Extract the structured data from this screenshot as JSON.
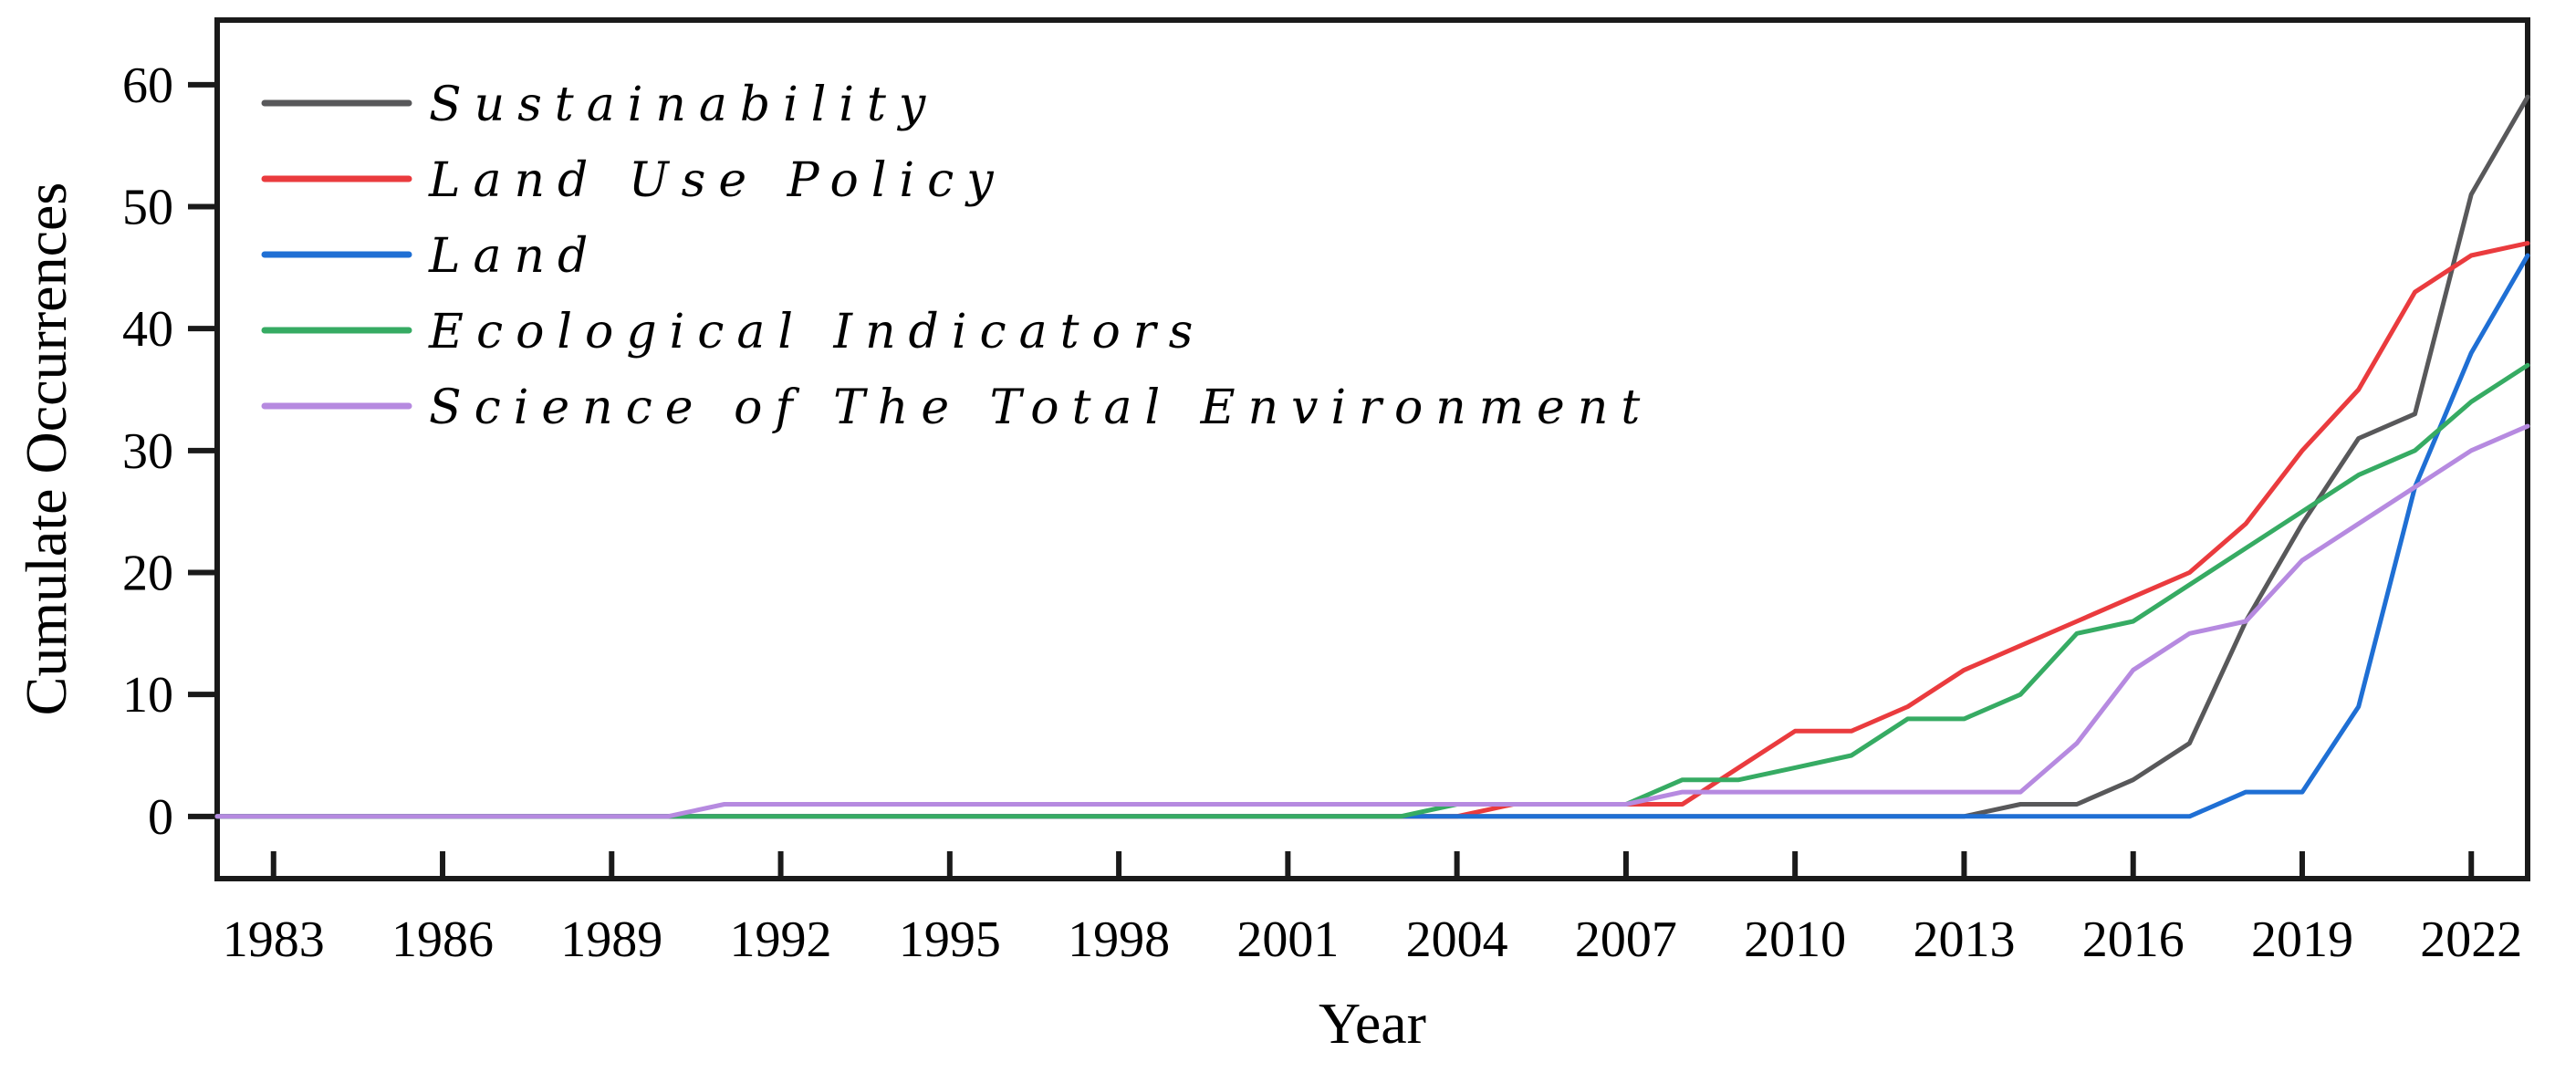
{
  "chart_data": {
    "type": "line",
    "title": "",
    "xlabel": "Year",
    "ylabel": "Cumulate Occurrences",
    "grid": false,
    "legend_position": "upper left",
    "xlim": [
      1982,
      2023
    ],
    "ylim": [
      -5.1,
      65.3
    ],
    "x_ticks": [
      1983,
      1986,
      1989,
      1992,
      1995,
      1998,
      2001,
      2004,
      2007,
      2010,
      2013,
      2016,
      2019,
      2022
    ],
    "y_ticks": [
      0,
      10,
      20,
      30,
      40,
      50,
      60
    ],
    "x": [
      1982,
      1983,
      1984,
      1985,
      1986,
      1987,
      1988,
      1989,
      1990,
      1991,
      1992,
      1993,
      1994,
      1995,
      1996,
      1997,
      1998,
      1999,
      2000,
      2001,
      2002,
      2003,
      2004,
      2005,
      2006,
      2007,
      2008,
      2009,
      2010,
      2011,
      2012,
      2013,
      2014,
      2015,
      2016,
      2017,
      2018,
      2019,
      2020,
      2021,
      2022,
      2023
    ],
    "series": [
      {
        "name": "Sustainability",
        "color": "#58585a",
        "values": [
          0,
          0,
          0,
          0,
          0,
          0,
          0,
          0,
          0,
          0,
          0,
          0,
          0,
          0,
          0,
          0,
          0,
          0,
          0,
          0,
          0,
          0,
          0,
          0,
          0,
          0,
          0,
          0,
          0,
          0,
          0,
          0,
          1,
          1,
          3,
          6,
          16,
          24,
          31,
          33,
          51,
          59
        ]
      },
      {
        "name": "Land Use Policy",
        "color": "#ea3b3e",
        "values": [
          0,
          0,
          0,
          0,
          0,
          0,
          0,
          0,
          0,
          0,
          0,
          0,
          0,
          0,
          0,
          0,
          0,
          0,
          0,
          0,
          0,
          0,
          0,
          1,
          1,
          1,
          1,
          4,
          7,
          7,
          9,
          12,
          14,
          16,
          18,
          20,
          24,
          30,
          35,
          43,
          46,
          47
        ]
      },
      {
        "name": "Land",
        "color": "#1f6fd4",
        "values": [
          0,
          0,
          0,
          0,
          0,
          0,
          0,
          0,
          0,
          0,
          0,
          0,
          0,
          0,
          0,
          0,
          0,
          0,
          0,
          0,
          0,
          0,
          0,
          0,
          0,
          0,
          0,
          0,
          0,
          0,
          0,
          0,
          0,
          0,
          0,
          0,
          2,
          2,
          9,
          27,
          38,
          46
        ]
      },
      {
        "name": "Ecological Indicators",
        "color": "#36ab63",
        "values": [
          0,
          0,
          0,
          0,
          0,
          0,
          0,
          0,
          0,
          0,
          0,
          0,
          0,
          0,
          0,
          0,
          0,
          0,
          0,
          0,
          0,
          0,
          1,
          1,
          1,
          1,
          3,
          3,
          4,
          5,
          8,
          8,
          10,
          15,
          16,
          19,
          22,
          25,
          28,
          30,
          34,
          37
        ]
      },
      {
        "name": "Science of The Total Environment",
        "color": "#b68ae0",
        "values": [
          0,
          0,
          0,
          0,
          0,
          0,
          0,
          0,
          0,
          1,
          1,
          1,
          1,
          1,
          1,
          1,
          1,
          1,
          1,
          1,
          1,
          1,
          1,
          1,
          1,
          1,
          2,
          2,
          2,
          2,
          2,
          2,
          2,
          6,
          12,
          15,
          16,
          21,
          24,
          27,
          30,
          32
        ]
      }
    ]
  }
}
